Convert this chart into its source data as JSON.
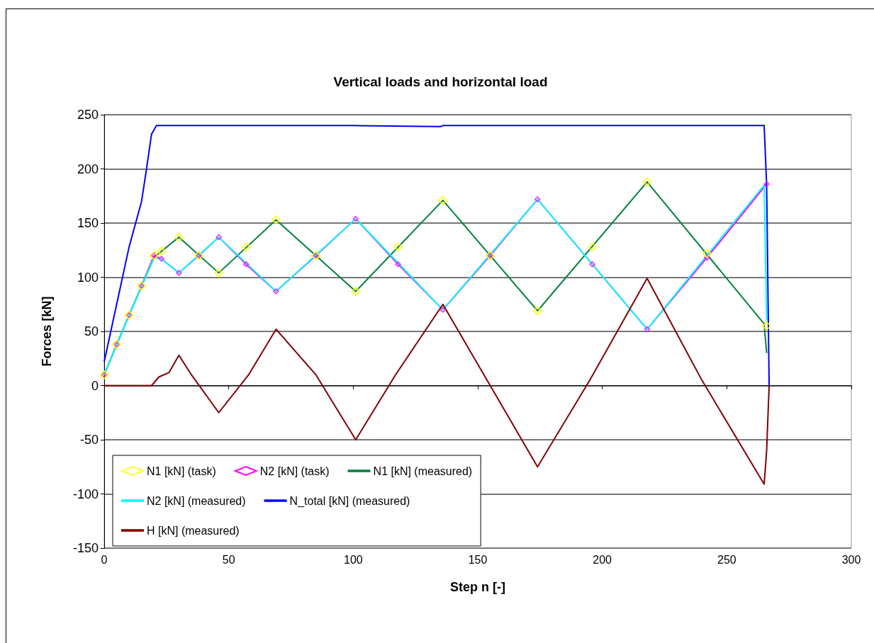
{
  "chart_data": {
    "type": "line",
    "title": "Vertical loads and horizontal load",
    "xlabel": "Step n [-]",
    "ylabel": "Forces [kN]",
    "xlim": [
      0,
      300
    ],
    "xticks": [
      0,
      50,
      100,
      150,
      200,
      250,
      300
    ],
    "ylim": [
      -150,
      250
    ],
    "yticks": [
      -150,
      -100,
      -50,
      0,
      50,
      100,
      150,
      200,
      250
    ],
    "grid": "y",
    "legend": "bottom left",
    "series": [
      {
        "name": "N1 [kN] (task)",
        "type": "scatter",
        "marker": "diamond",
        "color": "#ffff00",
        "x": [
          0,
          5,
          10,
          15,
          20,
          23,
          30,
          38,
          46,
          57,
          69,
          85,
          101,
          118,
          136,
          155,
          174,
          196,
          218,
          242,
          266
        ],
        "values": [
          10,
          38,
          65,
          92,
          120,
          124,
          137,
          120,
          104,
          128,
          153,
          120,
          87,
          128,
          171,
          120,
          69,
          128,
          188,
          122,
          55
        ]
      },
      {
        "name": "N2 [kN] (task)",
        "marker": "diamond",
        "color": "#ff00ff",
        "x": [
          0,
          5,
          10,
          15,
          20,
          23,
          30,
          38,
          46,
          57,
          69,
          85,
          101,
          118,
          136,
          155,
          174,
          196,
          218,
          242,
          266
        ],
        "values": [
          10,
          38,
          65,
          92,
          120,
          117,
          104,
          120,
          137,
          112,
          87,
          120,
          154,
          112,
          70,
          120,
          172,
          112,
          52,
          118,
          186
        ]
      },
      {
        "name": "N1 [kN] (measured)",
        "marker": "none",
        "color": "#008040",
        "x": [
          0,
          10,
          20,
          23,
          30,
          46,
          69,
          101,
          136,
          174,
          218,
          265,
          266
        ],
        "values": [
          10,
          65,
          118,
          124,
          137,
          104,
          153,
          87,
          171,
          69,
          188,
          57,
          30
        ]
      },
      {
        "name": "N2 [kN] (measured)",
        "marker": "none",
        "color": "#00ffff",
        "x": [
          0,
          10,
          20,
          23,
          30,
          46,
          69,
          101,
          136,
          174,
          218,
          265,
          266
        ],
        "values": [
          10,
          65,
          118,
          117,
          104,
          137,
          87,
          154,
          70,
          172,
          52,
          185,
          60
        ]
      },
      {
        "name": "N_total [kN] (measured)",
        "marker": "none",
        "color": "#0000ff",
        "x": [
          0,
          5,
          10,
          15,
          17,
          19,
          21,
          60,
          100,
          135,
          136,
          180,
          220,
          265,
          266,
          267
        ],
        "values": [
          22,
          75,
          128,
          170,
          200,
          232,
          240,
          240,
          240,
          239,
          240,
          240,
          240,
          240,
          185,
          0
        ]
      },
      {
        "name": "H [kN] (measured)",
        "marker": "none",
        "color": "#800000",
        "x": [
          0,
          19,
          22,
          26,
          30,
          35,
          46,
          58,
          69,
          85,
          101,
          117,
          136,
          155,
          174,
          195,
          218,
          240,
          265,
          266,
          267
        ],
        "values": [
          0,
          0,
          8,
          12,
          28,
          10,
          -25,
          10,
          52,
          10,
          -50,
          10,
          75,
          0,
          -75,
          5,
          99,
          5,
          -91,
          -60,
          0
        ]
      }
    ]
  }
}
